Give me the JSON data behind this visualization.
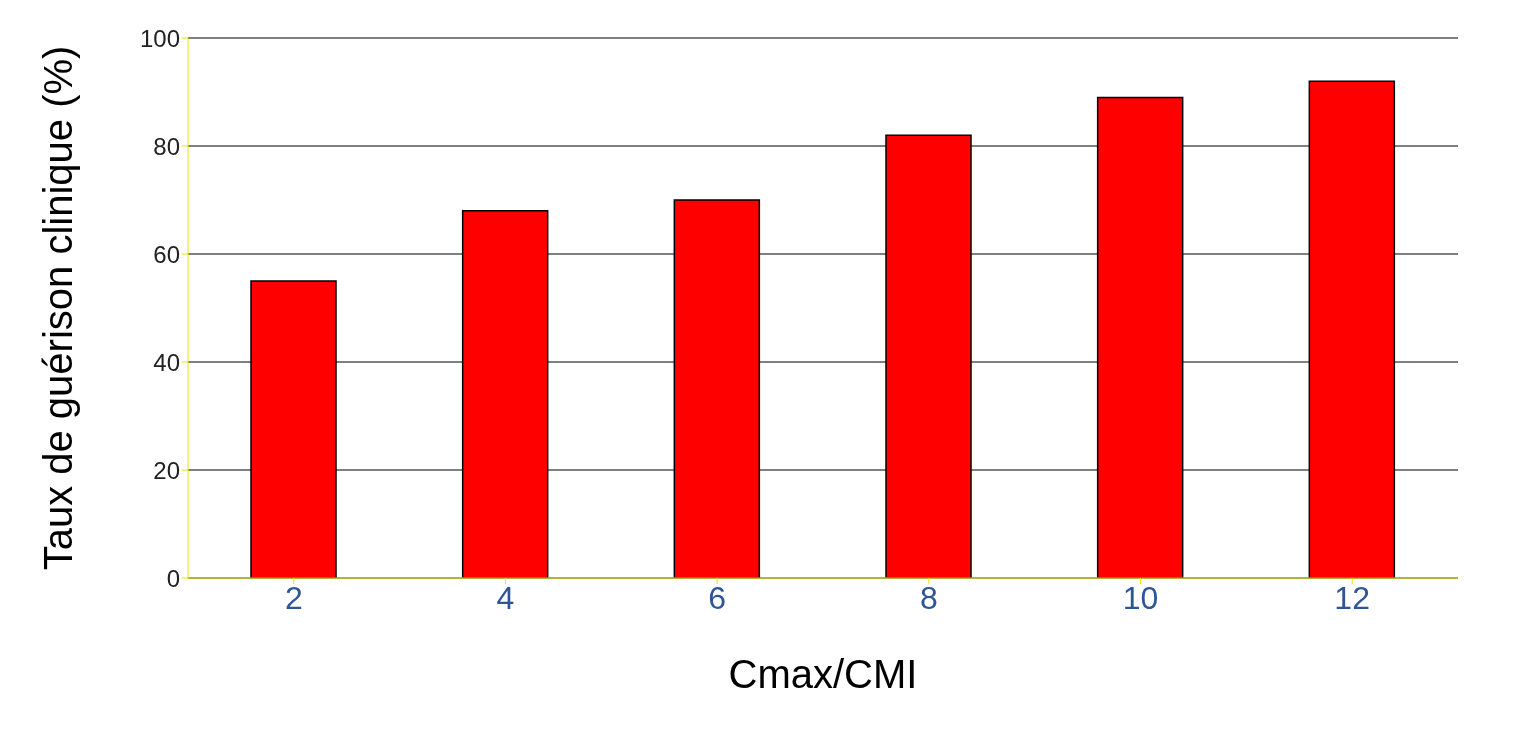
{
  "chart_data": {
    "type": "bar",
    "xlabel": "Cmax/CMI",
    "ylabel": "Taux de guérison clinique (%)",
    "categories": [
      "2",
      "4",
      "6",
      "8",
      "10",
      "12"
    ],
    "values": [
      55,
      68,
      70,
      82,
      89,
      92
    ],
    "color": "#ff0000",
    "ylim": [
      0,
      100
    ],
    "yticks": [
      0,
      20,
      40,
      60,
      80,
      100
    ],
    "grid": "y"
  }
}
